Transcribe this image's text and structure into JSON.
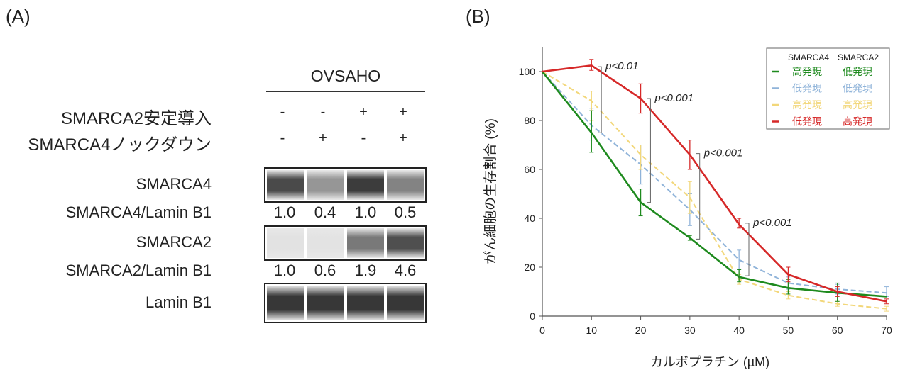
{
  "panel_a": {
    "label": "(A)",
    "cell_line": "OVSAHO",
    "conditions": [
      {
        "label": "SMARCA2安定導入",
        "signs": [
          "-",
          "-",
          "+",
          "+"
        ]
      },
      {
        "label": "SMARCA4ノックダウン",
        "signs": [
          "-",
          "+",
          "-",
          "+"
        ]
      }
    ],
    "blots": [
      {
        "label": "SMARCA4",
        "intensities": [
          0.85,
          0.45,
          0.92,
          0.55
        ],
        "ratio_label": "SMARCA4/Lamin B1",
        "ratios": [
          "1.0",
          "0.4",
          "1.0",
          "0.5"
        ]
      },
      {
        "label": "SMARCA2",
        "intensities": [
          0.05,
          0.04,
          0.6,
          0.82
        ],
        "ratio_label": "SMARCA2/Lamin B1",
        "ratios": [
          "1.0",
          "0.6",
          "1.9",
          "4.6"
        ]
      },
      {
        "label": "Lamin B1",
        "intensities": [
          0.95,
          0.95,
          0.95,
          0.95
        ]
      }
    ]
  },
  "panel_b": {
    "label": "(B)"
  },
  "chart_data": {
    "type": "line",
    "xlabel": "カルボプラチン (µM)",
    "ylabel": "がん細胞の生存割合 (%)",
    "x": [
      0,
      10,
      20,
      30,
      40,
      50,
      60,
      70
    ],
    "xlim": [
      0,
      70
    ],
    "ylim": [
      0,
      110
    ],
    "xticks": [
      "0",
      "10",
      "20",
      "30",
      "40",
      "50",
      "60",
      "70"
    ],
    "yticks": [
      "0",
      "20",
      "40",
      "60",
      "80",
      "100"
    ],
    "legend": {
      "position": "top-right",
      "headers": [
        "SMARCA4",
        "SMARCA2"
      ]
    },
    "series": [
      {
        "smarca4": "高発現",
        "smarca2": "低発現",
        "color": "#1e8a1e",
        "dashed": false,
        "values": [
          100,
          75,
          46.5,
          32,
          16,
          11.5,
          9.5,
          8
        ],
        "err_low": [
          100,
          67,
          41,
          31,
          14,
          9,
          6,
          8
        ],
        "err_high": [
          100,
          84,
          52,
          33,
          19,
          15,
          13.5,
          8
        ]
      },
      {
        "smarca4": "低発現",
        "smarca2": "低発現",
        "color": "#8fb3d9",
        "dashed": true,
        "values": [
          100,
          78,
          62,
          43.5,
          23,
          13.5,
          11,
          9.5
        ],
        "err_low": [
          100,
          72,
          54,
          37,
          19,
          11,
          9,
          8
        ],
        "err_high": [
          100,
          85,
          70,
          50,
          27,
          16,
          13,
          12
        ]
      },
      {
        "smarca4": "高発現",
        "smarca2": "高発現",
        "color": "#f2d77a",
        "dashed": true,
        "values": [
          100,
          88,
          66,
          48.5,
          15,
          8.5,
          5,
          3
        ],
        "err_low": [
          100,
          80,
          60,
          42,
          13,
          7,
          4,
          2
        ],
        "err_high": [
          100,
          92,
          70,
          55,
          17,
          10,
          6,
          4
        ]
      },
      {
        "smarca4": "低発現",
        "smarca2": "高発現",
        "color": "#d62828",
        "dashed": false,
        "values": [
          100,
          102.5,
          89,
          66,
          37.5,
          17,
          10,
          6
        ],
        "err_low": [
          100,
          100.5,
          83,
          60,
          36,
          14,
          8,
          5
        ],
        "err_high": [
          100,
          105,
          95,
          72,
          40,
          20,
          12,
          7
        ]
      }
    ],
    "annotations": [
      {
        "x": 12,
        "y_low": 75,
        "y_high": 102,
        "text": "p<0.01"
      },
      {
        "x": 22,
        "y_low": 46.5,
        "y_high": 89,
        "text": "p<0.001"
      },
      {
        "x": 32,
        "y_low": 31.5,
        "y_high": 66.5,
        "text": "p<0.001"
      },
      {
        "x": 42,
        "y_low": 16.5,
        "y_high": 38,
        "text": "p<0.001"
      }
    ]
  }
}
